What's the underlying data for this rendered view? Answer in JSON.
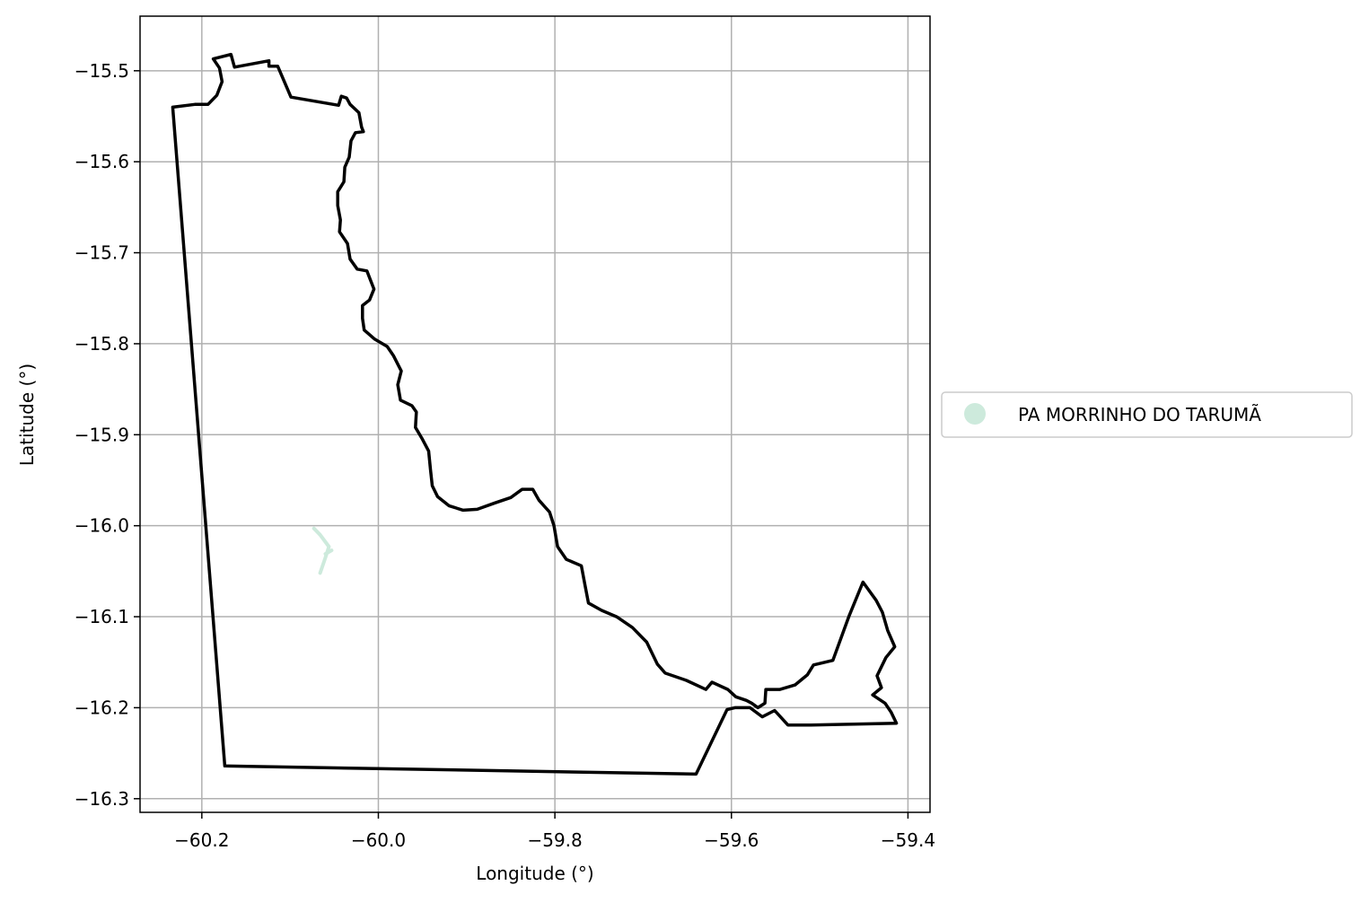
{
  "chart_data": {
    "type": "map",
    "xlabel": "Longitude (°)",
    "ylabel": "Latitude (°)",
    "xlim": [
      -60.27,
      -59.375
    ],
    "ylim": [
      -16.315,
      -15.44
    ],
    "xticks": [
      -60.2,
      -60.0,
      -59.8,
      -59.6,
      -59.4
    ],
    "yticks": [
      -15.5,
      -15.6,
      -15.7,
      -15.8,
      -15.9,
      -16.0,
      -16.1,
      -16.2,
      -16.3
    ],
    "xtick_labels": [
      "−60.2",
      "−60.0",
      "−59.8",
      "−59.6",
      "−59.4"
    ],
    "ytick_labels": [
      "−15.5",
      "−15.6",
      "−15.7",
      "−15.8",
      "−15.9",
      "−16.0",
      "−16.1",
      "−16.2",
      "−16.3"
    ],
    "grid": true,
    "legend_placement": "center-right-outside",
    "colors": {
      "boundary": "#000000",
      "feature": "#cdeadc",
      "grid": "#b0b0b0"
    },
    "legend": [
      {
        "label": "PA MORRINHO DO TARUMÃ",
        "color": "#cdeadc",
        "marker": "circle"
      }
    ],
    "boundary": [
      [
        -60.233,
        -15.54
      ],
      [
        -60.208,
        -15.537
      ],
      [
        -60.193,
        -15.537
      ],
      [
        -60.183,
        -15.527
      ],
      [
        -60.177,
        -15.512
      ],
      [
        -60.18,
        -15.497
      ],
      [
        -60.187,
        -15.487
      ],
      [
        -60.167,
        -15.482
      ],
      [
        -60.163,
        -15.496
      ],
      [
        -60.124,
        -15.489
      ],
      [
        -60.124,
        -15.495
      ],
      [
        -60.114,
        -15.495
      ],
      [
        -60.099,
        -15.529
      ],
      [
        -60.045,
        -15.538
      ],
      [
        -60.042,
        -15.528
      ],
      [
        -60.036,
        -15.53
      ],
      [
        -60.032,
        -15.537
      ],
      [
        -60.022,
        -15.546
      ],
      [
        -60.019,
        -15.562
      ],
      [
        -60.017,
        -15.567
      ],
      [
        -60.026,
        -15.568
      ],
      [
        -60.031,
        -15.577
      ],
      [
        -60.033,
        -15.595
      ],
      [
        -60.038,
        -15.606
      ],
      [
        -60.039,
        -15.622
      ],
      [
        -60.046,
        -15.633
      ],
      [
        -60.046,
        -15.648
      ],
      [
        -60.043,
        -15.664
      ],
      [
        -60.044,
        -15.677
      ],
      [
        -60.035,
        -15.69
      ],
      [
        -60.032,
        -15.707
      ],
      [
        -60.024,
        -15.718
      ],
      [
        -60.013,
        -15.72
      ],
      [
        -60.005,
        -15.74
      ],
      [
        -60.01,
        -15.752
      ],
      [
        -60.018,
        -15.758
      ],
      [
        -60.018,
        -15.772
      ],
      [
        -60.016,
        -15.785
      ],
      [
        -60.004,
        -15.795
      ],
      [
        -59.99,
        -15.803
      ],
      [
        -59.983,
        -15.813
      ],
      [
        -59.974,
        -15.83
      ],
      [
        -59.978,
        -15.845
      ],
      [
        -59.975,
        -15.862
      ],
      [
        -59.962,
        -15.868
      ],
      [
        -59.957,
        -15.875
      ],
      [
        -59.958,
        -15.892
      ],
      [
        -59.95,
        -15.905
      ],
      [
        -59.943,
        -15.918
      ],
      [
        -59.941,
        -15.938
      ],
      [
        -59.939,
        -15.956
      ],
      [
        -59.933,
        -15.968
      ],
      [
        -59.92,
        -15.978
      ],
      [
        -59.904,
        -15.983
      ],
      [
        -59.888,
        -15.982
      ],
      [
        -59.868,
        -15.975
      ],
      [
        -59.85,
        -15.969
      ],
      [
        -59.837,
        -15.96
      ],
      [
        -59.825,
        -15.96
      ],
      [
        -59.818,
        -15.972
      ],
      [
        -59.806,
        -15.985
      ],
      [
        -59.801,
        -16.0
      ],
      [
        -59.797,
        -16.023
      ],
      [
        -59.787,
        -16.037
      ],
      [
        -59.77,
        -16.044
      ],
      [
        -59.766,
        -16.065
      ],
      [
        -59.762,
        -16.085
      ],
      [
        -59.747,
        -16.093
      ],
      [
        -59.73,
        -16.1
      ],
      [
        -59.712,
        -16.112
      ],
      [
        -59.696,
        -16.128
      ],
      [
        -59.684,
        -16.152
      ],
      [
        -59.675,
        -16.162
      ],
      [
        -59.651,
        -16.17
      ],
      [
        -59.629,
        -16.18
      ],
      [
        -59.622,
        -16.172
      ],
      [
        -59.604,
        -16.18
      ],
      [
        -59.595,
        -16.188
      ],
      [
        -59.583,
        -16.192
      ],
      [
        -59.577,
        -16.195
      ],
      [
        -59.57,
        -16.2
      ],
      [
        -59.562,
        -16.195
      ],
      [
        -59.561,
        -16.18
      ],
      [
        -59.545,
        -16.18
      ],
      [
        -59.528,
        -16.175
      ],
      [
        -59.514,
        -16.164
      ],
      [
        -59.507,
        -16.153
      ],
      [
        -59.485,
        -16.148
      ],
      [
        -59.467,
        -16.1
      ],
      [
        -59.451,
        -16.062
      ],
      [
        -59.436,
        -16.082
      ],
      [
        -59.429,
        -16.095
      ],
      [
        -59.423,
        -16.115
      ],
      [
        -59.415,
        -16.133
      ],
      [
        -59.425,
        -16.145
      ],
      [
        -59.435,
        -16.165
      ],
      [
        -59.43,
        -16.178
      ],
      [
        -59.44,
        -16.186
      ],
      [
        -59.426,
        -16.195
      ],
      [
        -59.419,
        -16.205
      ],
      [
        -59.413,
        -16.217
      ],
      [
        -59.51,
        -16.219
      ],
      [
        -59.536,
        -16.219
      ],
      [
        -59.551,
        -16.203
      ],
      [
        -59.565,
        -16.21
      ],
      [
        -59.579,
        -16.2
      ],
      [
        -59.596,
        -16.2
      ],
      [
        -59.605,
        -16.202
      ],
      [
        -59.64,
        -16.273
      ],
      [
        -60.174,
        -16.264
      ],
      [
        -60.233,
        -15.54
      ]
    ],
    "feature": {
      "name": "PA MORRINHO DO TARUMÃ",
      "line": [
        [
          -60.073,
          -16.003
        ],
        [
          -60.066,
          -16.01
        ],
        [
          -60.056,
          -16.023
        ],
        [
          -60.06,
          -16.035
        ],
        [
          -60.066,
          -16.052
        ]
      ],
      "stub": [
        [
          -60.06,
          -16.031
        ],
        [
          -60.053,
          -16.027
        ]
      ]
    }
  }
}
